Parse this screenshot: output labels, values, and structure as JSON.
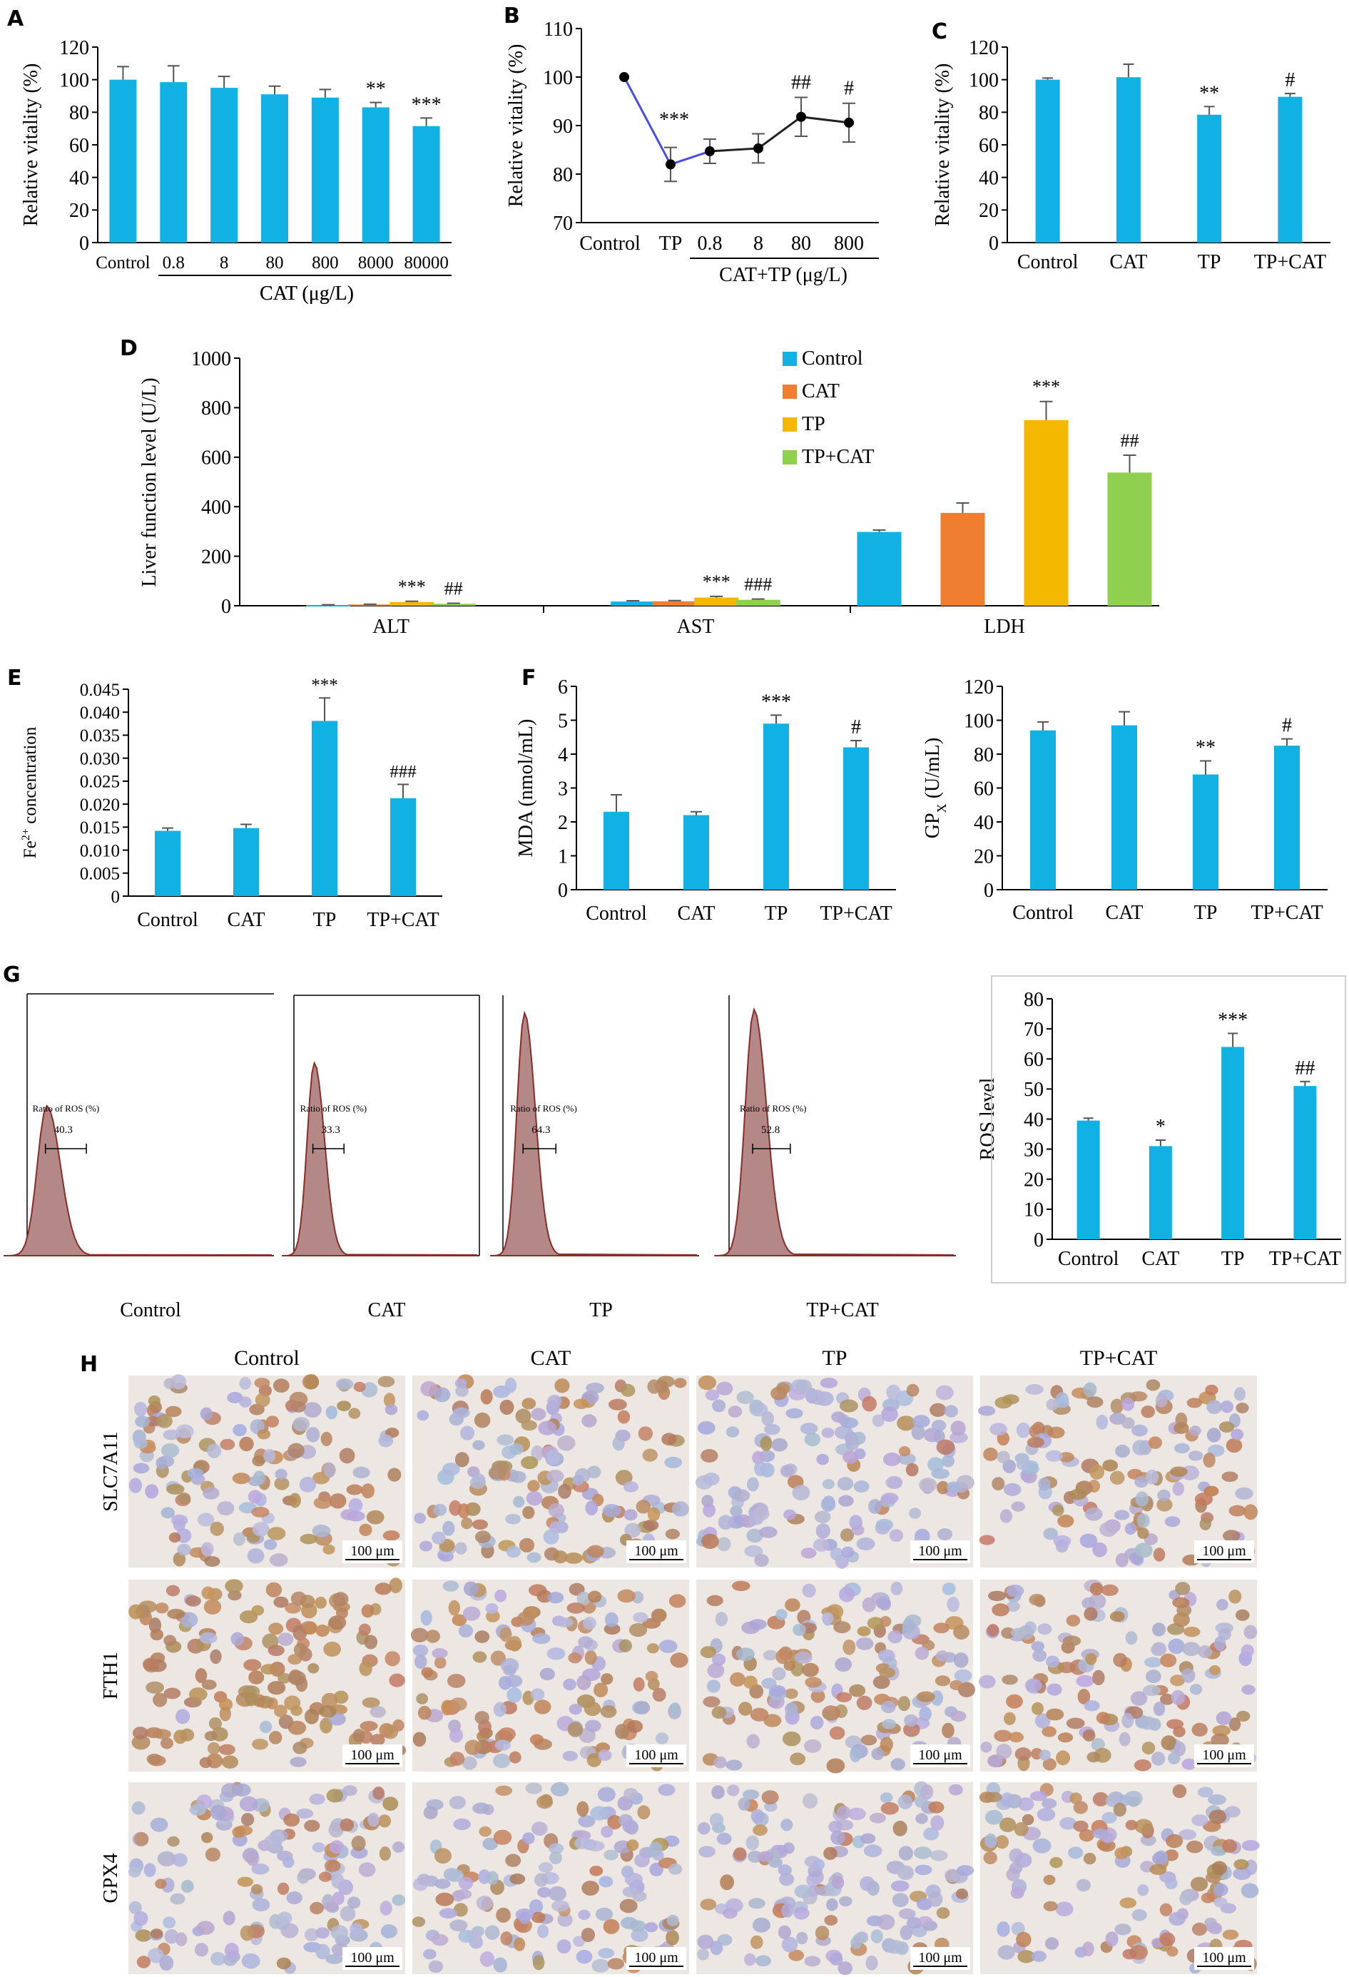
{
  "colors": {
    "bar": "#12b1e3",
    "control": "#12b1e3",
    "cat": "#ef7e31",
    "tp": "#f5b800",
    "tpcat": "#8fd14f",
    "line": "#4a4de0",
    "histogram": "#b48886",
    "histogram_edge": "#8b2c28",
    "cells_bg": "#ece7e2"
  },
  "chart_data": [
    {
      "id": "A",
      "panel_label": "A",
      "type": "bar",
      "categories": [
        "Control",
        "0.8",
        "8",
        "80",
        "800",
        "8000",
        "80000"
      ],
      "values": [
        100,
        98.5,
        95,
        91,
        89,
        83,
        71.5
      ],
      "errors": [
        8,
        10,
        7,
        5,
        5,
        3,
        5
      ],
      "annotations": [
        "",
        "",
        "",
        "",
        "",
        "**",
        "***"
      ],
      "ylabel": "Relative vitality (%)",
      "xlabel": "CAT (μg/L)",
      "ylim": [
        0,
        120
      ],
      "yticks": [
        0,
        20,
        40,
        60,
        80,
        100,
        120
      ]
    },
    {
      "id": "B",
      "panel_label": "B",
      "type": "line",
      "categories": [
        "Control",
        "TP",
        "0.8",
        "8",
        "80",
        "800"
      ],
      "values": [
        100,
        82,
        84.7,
        85.3,
        91.8,
        90.6
      ],
      "errors": [
        0,
        3.5,
        2.5,
        3,
        4,
        4
      ],
      "annotations": [
        "",
        "***",
        "",
        "",
        "##",
        "#"
      ],
      "ylabel": "Relative vitality (%)",
      "xlabel": "CAT+TP (μg/L)",
      "ylim": [
        70,
        110
      ],
      "yticks": [
        70,
        80,
        90,
        100,
        110
      ]
    },
    {
      "id": "C",
      "panel_label": "C",
      "type": "bar",
      "categories": [
        "Control",
        "CAT",
        "TP",
        "TP+CAT"
      ],
      "values": [
        100,
        101.5,
        78.5,
        89.5
      ],
      "errors": [
        1,
        8,
        5,
        2
      ],
      "annotations": [
        "",
        "",
        "**",
        "#"
      ],
      "ylabel": "Relative vitality (%)",
      "ylim": [
        0,
        120
      ],
      "yticks": [
        0,
        20,
        40,
        60,
        80,
        100,
        120
      ]
    },
    {
      "id": "D",
      "panel_label": "D",
      "type": "bar",
      "categories": [
        "ALT",
        "AST",
        "LDH"
      ],
      "series": [
        {
          "name": "Control",
          "values": [
            3,
            17,
            298
          ],
          "errors": [
            1,
            3,
            8
          ]
        },
        {
          "name": "CAT",
          "values": [
            5,
            18,
            375
          ],
          "errors": [
            1,
            3,
            40
          ]
        },
        {
          "name": "TP",
          "values": [
            15,
            33,
            750
          ],
          "errors": [
            3,
            5,
            75
          ]
        },
        {
          "name": "TP+CAT",
          "values": [
            8,
            24,
            538
          ],
          "errors": [
            2,
            3,
            70
          ]
        }
      ],
      "annotations": [
        [
          "",
          "",
          "***",
          "##"
        ],
        [
          "",
          "",
          "***",
          "###"
        ],
        [
          "",
          "",
          "***",
          "##"
        ]
      ],
      "ylabel": "Liver function level (U/L)",
      "ylim": [
        0,
        1000
      ],
      "yticks": [
        0,
        200,
        400,
        600,
        800,
        1000
      ],
      "legend": "top-right"
    },
    {
      "id": "E",
      "panel_label": "E",
      "type": "bar",
      "categories": [
        "Control",
        "CAT",
        "TP",
        "TP+CAT"
      ],
      "values": [
        0.0142,
        0.0148,
        0.0381,
        0.0213
      ],
      "errors": [
        0.0006,
        0.0008,
        0.005,
        0.003
      ],
      "annotations": [
        "",
        "",
        "***",
        "###"
      ],
      "ylabel_main": "Fe",
      "ylabel_sup": "2+",
      "ylabel_rest": " concentration",
      "ylim": [
        0,
        0.045
      ],
      "yticks": [
        "0",
        "0.005",
        "0.010",
        "0.015",
        "0.020",
        "0.025",
        "0.030",
        "0.035",
        "0.040",
        "0.045"
      ]
    },
    {
      "id": "F1",
      "panel_label": "F",
      "type": "bar",
      "categories": [
        "Control",
        "CAT",
        "TP",
        "TP+CAT"
      ],
      "values": [
        2.3,
        2.2,
        4.9,
        4.2
      ],
      "errors": [
        0.5,
        0.1,
        0.25,
        0.2
      ],
      "annotations": [
        "",
        "",
        "***",
        "#"
      ],
      "ylabel": "MDA (nmol/mL)",
      "ylim": [
        0,
        6
      ],
      "yticks": [
        0,
        1,
        2,
        3,
        4,
        5,
        6
      ]
    },
    {
      "id": "F2",
      "panel_label": "",
      "type": "bar",
      "categories": [
        "Control",
        "CAT",
        "TP",
        "TP+CAT"
      ],
      "values": [
        94,
        97,
        68,
        85
      ],
      "errors": [
        5,
        8,
        8,
        4
      ],
      "annotations": [
        "",
        "",
        "**",
        "#"
      ],
      "ylabel_main": "GP",
      "ylabel_sub": "X",
      "ylabel_rest": " (U/mL)",
      "ylim": [
        0,
        120
      ],
      "yticks": [
        0,
        20,
        40,
        60,
        80,
        100,
        120
      ]
    },
    {
      "id": "G2",
      "panel_label": "",
      "type": "bar",
      "categories": [
        "Control",
        "CAT",
        "TP",
        "TP+CAT"
      ],
      "values": [
        39.5,
        31,
        64,
        51
      ],
      "errors": [
        0.8,
        2,
        4.5,
        1.5
      ],
      "annotations": [
        "",
        "*",
        "***",
        "##"
      ],
      "ylabel": "ROS level",
      "ylim": [
        0,
        80
      ],
      "yticks": [
        0,
        10,
        20,
        30,
        40,
        50,
        60,
        70,
        80
      ]
    }
  ],
  "flow": {
    "panel_label": "G",
    "gate_label": "Ratio of ROS (%)",
    "samples": [
      {
        "name": "Control",
        "value": "40.3"
      },
      {
        "name": "CAT",
        "value": "33.3"
      },
      {
        "name": "TP",
        "value": "64.3"
      },
      {
        "name": "TP+CAT",
        "value": "52.8"
      }
    ]
  },
  "ihc": {
    "panel_label": "H",
    "columns": [
      "Control",
      "CAT",
      "TP",
      "TP+CAT"
    ],
    "rows": [
      {
        "name": "SLC7A11",
        "intensity": [
          0.5,
          0.45,
          0.15,
          0.45
        ]
      },
      {
        "name": "FTH1",
        "intensity": [
          0.95,
          0.6,
          0.45,
          0.45
        ]
      },
      {
        "name": "GPX4",
        "intensity": [
          0.25,
          0.3,
          0.15,
          0.45
        ]
      }
    ],
    "scale_bar": "100 μm"
  }
}
